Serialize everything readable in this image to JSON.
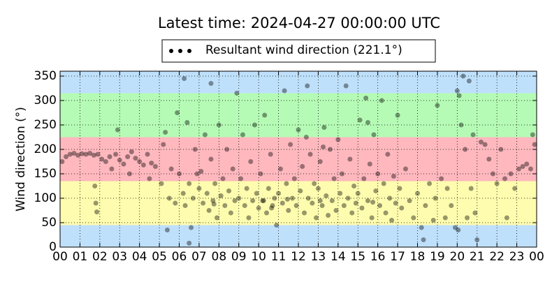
{
  "chart_data": {
    "type": "scatter",
    "title": "Latest time: 2024-04-27 00:00:00 UTC",
    "ylabel": "Wind direction (°)",
    "xlim": [
      0,
      24
    ],
    "ylim": [
      0,
      360
    ],
    "xticks": [
      {
        "value": 0,
        "label": "00"
      },
      {
        "value": 1,
        "label": "01"
      },
      {
        "value": 2,
        "label": "02"
      },
      {
        "value": 3,
        "label": "03"
      },
      {
        "value": 4,
        "label": "04"
      },
      {
        "value": 5,
        "label": "05"
      },
      {
        "value": 6,
        "label": "06"
      },
      {
        "value": 7,
        "label": "07"
      },
      {
        "value": 8,
        "label": "08"
      },
      {
        "value": 9,
        "label": "09"
      },
      {
        "value": 10,
        "label": "10"
      },
      {
        "value": 11,
        "label": "11"
      },
      {
        "value": 12,
        "label": "12"
      },
      {
        "value": 13,
        "label": "13"
      },
      {
        "value": 14,
        "label": "14"
      },
      {
        "value": 15,
        "label": "15"
      },
      {
        "value": 16,
        "label": "16"
      },
      {
        "value": 17,
        "label": "17"
      },
      {
        "value": 18,
        "label": "18"
      },
      {
        "value": 19,
        "label": "19"
      },
      {
        "value": 20,
        "label": "20"
      },
      {
        "value": 21,
        "label": "21"
      },
      {
        "value": 22,
        "label": "22"
      },
      {
        "value": 23,
        "label": "23"
      },
      {
        "value": 24,
        "label": "00"
      }
    ],
    "yticks": [
      0,
      50,
      100,
      150,
      200,
      250,
      300,
      350
    ],
    "grid": true,
    "legend": "top",
    "bands": [
      {
        "from": 0,
        "to": 45,
        "color": "#bfe0fb"
      },
      {
        "from": 45,
        "to": 135,
        "color": "#fefcae"
      },
      {
        "from": 135,
        "to": 225,
        "color": "#feb8be"
      },
      {
        "from": 225,
        "to": 315,
        "color": "#b5fbb5"
      },
      {
        "from": 315,
        "to": 360,
        "color": "#bfe0fb"
      }
    ],
    "series": [
      {
        "name": "Resultant wind direction (221.1°)",
        "color": "#000000",
        "alpha": 0.4,
        "x": [
          0.1,
          0.3,
          0.5,
          0.7,
          0.9,
          1.1,
          1.3,
          1.5,
          1.7,
          1.9,
          1.75,
          1.8,
          1.85,
          2.1,
          2.3,
          2.5,
          2.6,
          2.8,
          3.0,
          3.2,
          3.4,
          3.6,
          3.8,
          4.0,
          4.2,
          4.4,
          4.6,
          4.8,
          3.5,
          4.5,
          2.9,
          5.1,
          5.2,
          5.3,
          5.5,
          5.6,
          5.8,
          5.9,
          6.0,
          6.2,
          6.3,
          6.4,
          6.5,
          6.6,
          6.7,
          6.8,
          6.9,
          6.25,
          6.5,
          5.4,
          7.0,
          7.1,
          7.2,
          7.3,
          7.4,
          7.5,
          7.6,
          7.7,
          7.8,
          7.9,
          8.0,
          8.1,
          8.2,
          8.3,
          8.4,
          8.5,
          8.6,
          8.7,
          8.8,
          8.9,
          7.6,
          7.75,
          9.0,
          9.1,
          9.2,
          9.3,
          9.4,
          9.5,
          9.6,
          9.7,
          9.8,
          9.9,
          10.0,
          10.1,
          10.2,
          10.3,
          10.4,
          10.5,
          10.6,
          10.7,
          10.8,
          10.9,
          10.25,
          10.65,
          11.0,
          11.1,
          11.2,
          11.3,
          11.4,
          11.5,
          11.6,
          11.7,
          11.8,
          11.9,
          12.0,
          12.1,
          12.2,
          12.3,
          12.4,
          12.5,
          12.6,
          12.7,
          12.8,
          12.9,
          11.45,
          12.45,
          13.0,
          13.1,
          13.2,
          13.3,
          13.4,
          13.5,
          13.6,
          13.7,
          13.8,
          13.9,
          14.0,
          14.1,
          14.2,
          14.3,
          14.4,
          14.5,
          14.6,
          14.7,
          14.8,
          14.9,
          13.25,
          13.1,
          15.0,
          15.1,
          15.2,
          15.3,
          15.4,
          15.5,
          15.6,
          15.7,
          15.8,
          15.9,
          16.0,
          16.1,
          16.2,
          16.3,
          16.4,
          16.5,
          16.6,
          16.7,
          16.8,
          16.9,
          15.5,
          15.75,
          17.0,
          17.1,
          17.2,
          17.4,
          17.6,
          17.8,
          18.0,
          18.2,
          18.3,
          18.4,
          18.6,
          18.8,
          18.9,
          19.0,
          19.2,
          19.4,
          19.5,
          19.7,
          19.9,
          20.0,
          20.1,
          20.2,
          20.3,
          20.4,
          20.5,
          20.6,
          20.7,
          20.8,
          20.9,
          21.0,
          20.05,
          21.2,
          21.4,
          21.6,
          21.8,
          22.0,
          22.2,
          22.4,
          22.5,
          22.7,
          22.9,
          23.1,
          23.3,
          23.5,
          23.7,
          23.9,
          23.8
        ],
        "values": [
          175,
          185,
          190,
          192,
          188,
          191,
          190,
          192,
          188,
          190,
          125,
          90,
          72,
          180,
          175,
          185,
          160,
          190,
          178,
          170,
          185,
          195,
          182,
          175,
          168,
          190,
          172,
          165,
          150,
          140,
          240,
          130,
          210,
          235,
          100,
          160,
          90,
          275,
          150,
          110,
          85,
          255,
          130,
          40,
          100,
          200,
          150,
          345,
          8,
          35,
          120,
          155,
          90,
          230,
          110,
          75,
          180,
          95,
          130,
          60,
          250,
          105,
          140,
          85,
          200,
          115,
          70,
          160,
          95,
          315,
          335,
          88,
          100,
          140,
          230,
          85,
          120,
          60,
          175,
          95,
          250,
          110,
          80,
          150,
          95,
          270,
          70,
          120,
          190,
          85,
          100,
          45,
          95,
          80,
          110,
          160,
          90,
          320,
          130,
          75,
          210,
          100,
          140,
          85,
          240,
          115,
          165,
          70,
          225,
          100,
          190,
          90,
          130,
          60,
          98,
          330,
          120,
          175,
          85,
          245,
          105,
          65,
          200,
          95,
          140,
          75,
          220,
          110,
          150,
          85,
          330,
          100,
          180,
          70,
          125,
          90,
          205,
          95,
          110,
          260,
          80,
          140,
          305,
          95,
          170,
          60,
          230,
          115,
          150,
          85,
          300,
          130,
          70,
          190,
          100,
          55,
          145,
          90,
          255,
          92,
          270,
          120,
          80,
          160,
          95,
          60,
          110,
          40,
          15,
          85,
          130,
          55,
          100,
          290,
          140,
          60,
          120,
          85,
          40,
          320,
          310,
          250,
          350,
          200,
          60,
          340,
          120,
          230,
          70,
          15,
          35,
          215,
          210,
          180,
          150,
          130,
          200,
          140,
          60,
          150,
          120,
          160,
          165,
          170,
          160,
          210,
          230
        ]
      }
    ]
  }
}
